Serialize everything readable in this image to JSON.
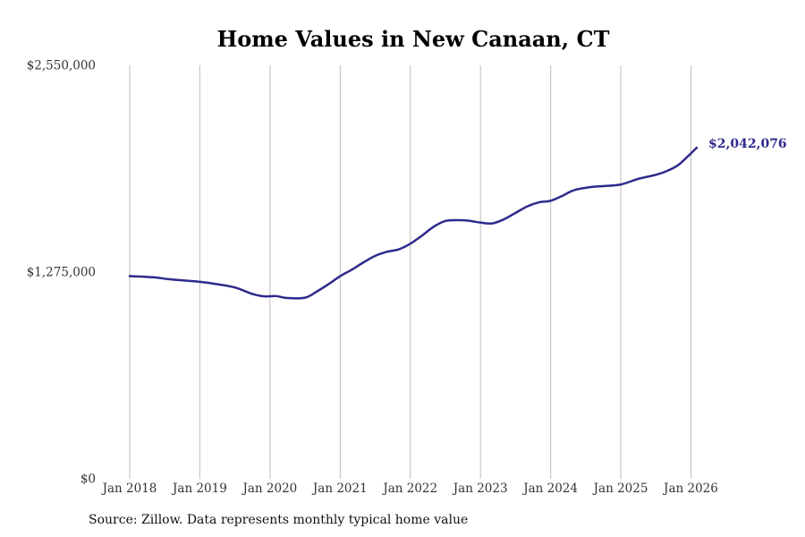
{
  "chart_data": {
    "type": "line",
    "title": "Home Values in New Canaan, CT",
    "xlabel": "",
    "ylabel": "",
    "ylim": [
      0,
      2550000
    ],
    "y_ticks": [
      0,
      1275000,
      2550000
    ],
    "y_tick_labels": [
      "$0",
      "$1,275,000",
      "$2,550,000"
    ],
    "x_range": [
      2018.0,
      2026.0833
    ],
    "x_ticks": [
      2018,
      2019,
      2020,
      2021,
      2022,
      2023,
      2024,
      2025,
      2026
    ],
    "x_tick_labels": [
      "Jan 2018",
      "Jan 2019",
      "Jan 2020",
      "Jan 2021",
      "Jan 2022",
      "Jan 2023",
      "Jan 2024",
      "Jan 2025",
      "Jan 2026"
    ],
    "grid": "vertical",
    "line_color": "#2e2a8c",
    "end_label": "$2,042,076",
    "series": [
      {
        "name": "Typical home value",
        "x": [
          2018.0,
          2018.333,
          2018.583,
          2019.0,
          2019.25,
          2019.5,
          2019.75,
          2019.917,
          2020.083,
          2020.25,
          2020.5,
          2020.667,
          2020.833,
          2021.0,
          2021.167,
          2021.333,
          2021.5,
          2021.667,
          2021.833,
          2022.0,
          2022.167,
          2022.333,
          2022.5,
          2022.667,
          2022.833,
          2023.0,
          2023.167,
          2023.333,
          2023.5,
          2023.667,
          2023.833,
          2024.0,
          2024.167,
          2024.333,
          2024.583,
          2024.75,
          2025.0,
          2025.25,
          2025.5,
          2025.667,
          2025.833,
          2026.0833
        ],
        "values": [
          1250000,
          1243000,
          1230000,
          1215000,
          1200000,
          1180000,
          1140000,
          1125000,
          1127000,
          1115000,
          1117000,
          1155000,
          1200000,
          1250000,
          1290000,
          1335000,
          1375000,
          1400000,
          1415000,
          1450000,
          1500000,
          1555000,
          1590000,
          1595000,
          1592000,
          1580000,
          1575000,
          1600000,
          1640000,
          1680000,
          1705000,
          1715000,
          1745000,
          1780000,
          1800000,
          1805000,
          1815000,
          1850000,
          1875000,
          1900000,
          1940000,
          2042076
        ]
      }
    ]
  },
  "footer": {
    "source": "Source: Zillow. Data represents monthly typical home value"
  }
}
